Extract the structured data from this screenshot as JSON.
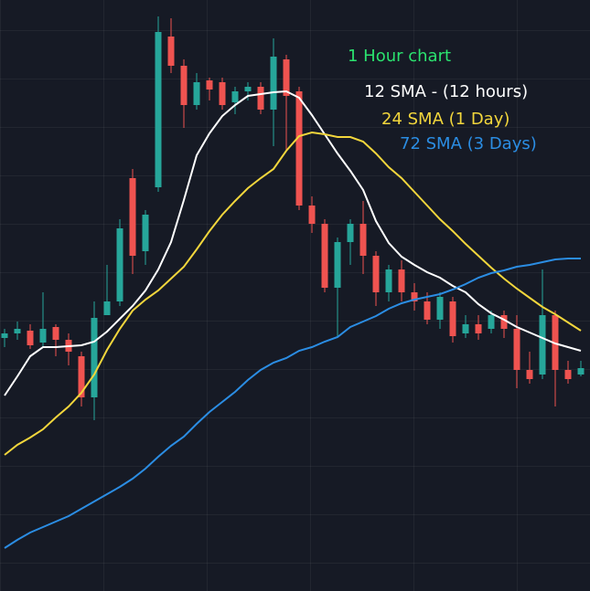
{
  "chart_data": {
    "type": "candlestick",
    "title": "1 Hour chart",
    "title_color": "#2be36f",
    "ylim": [
      0,
      647
    ],
    "up_color": "#26a69a",
    "down_color": "#ef5350",
    "open": [
      277,
      282,
      285,
      272,
      289,
      275,
      257,
      212,
      302,
      317,
      452,
      372,
      442,
      607,
      575,
      532,
      559,
      557,
      535,
      547,
      552,
      527,
      582,
      547,
      422,
      402,
      332,
      382,
      402,
      367,
      327,
      352,
      327,
      317,
      297,
      317,
      282,
      292,
      287,
      302,
      287,
      242,
      237,
      302,
      242,
      237
    ],
    "high": [
      287,
      295,
      292,
      327,
      292,
      282,
      262,
      317,
      357,
      407,
      462,
      417,
      629,
      627,
      582,
      567,
      562,
      562,
      552,
      557,
      557,
      605,
      587,
      552,
      432,
      407,
      387,
      407,
      427,
      372,
      357,
      362,
      337,
      327,
      327,
      322,
      302,
      302,
      307,
      307,
      302,
      262,
      352,
      307,
      252,
      252
    ],
    "low": [
      267,
      275,
      265,
      267,
      257,
      247,
      202,
      187,
      307,
      312,
      347,
      357,
      437,
      567,
      507,
      527,
      537,
      527,
      522,
      537,
      522,
      487,
      482,
      417,
      392,
      327,
      277,
      357,
      347,
      312,
      317,
      317,
      307,
      292,
      287,
      272,
      277,
      275,
      282,
      277,
      222,
      227,
      232,
      202,
      227,
      235
    ],
    "close": [
      282,
      287,
      269,
      287,
      275,
      262,
      212,
      299,
      317,
      397,
      367,
      412,
      612,
      575,
      532,
      557,
      549,
      532,
      547,
      552,
      527,
      585,
      542,
      422,
      402,
      332,
      382,
      402,
      367,
      327,
      352,
      327,
      317,
      297,
      322,
      279,
      292,
      282,
      302,
      287,
      242,
      232,
      302,
      242,
      232,
      244
    ],
    "series": [
      {
        "name": "12 SMA - (12 hours)",
        "color": "#ffffff",
        "values": [
          214,
          235,
          257,
          267,
          267,
          268,
          269,
          273,
          284,
          298,
          312,
          329,
          352,
          382,
          428,
          477,
          501,
          520,
          532,
          542,
          544,
          546,
          547,
          540,
          521,
          500,
          479,
          460,
          439,
          405,
          381,
          366,
          357,
          349,
          343,
          334,
          327,
          314,
          304,
          297,
          289,
          283,
          277,
          271,
          267,
          263
        ]
      },
      {
        "name": "24 SMA (1 Day)",
        "color": "#f2d63c",
        "values": [
          149,
          160,
          168,
          177,
          190,
          202,
          217,
          237,
          264,
          287,
          307,
          319,
          329,
          342,
          355,
          374,
          394,
          412,
          427,
          441,
          452,
          462,
          482,
          498,
          502,
          500,
          497,
          497,
          492,
          479,
          464,
          452,
          437,
          422,
          407,
          394,
          380,
          367,
          354,
          342,
          331,
          321,
          311,
          303,
          294,
          285
        ]
      },
      {
        "name": "72 SMA (3 Days)",
        "color": "#2b8de3",
        "values": [
          47,
          56,
          64,
          70,
          76,
          82,
          90,
          98,
          106,
          114,
          123,
          134,
          147,
          159,
          169,
          183,
          196,
          207,
          218,
          231,
          242,
          250,
          255,
          263,
          267,
          273,
          278,
          289,
          295,
          301,
          309,
          315,
          319,
          322,
          325,
          330,
          336,
          343,
          348,
          351,
          355,
          357,
          360,
          363,
          364,
          364
        ]
      }
    ]
  }
}
